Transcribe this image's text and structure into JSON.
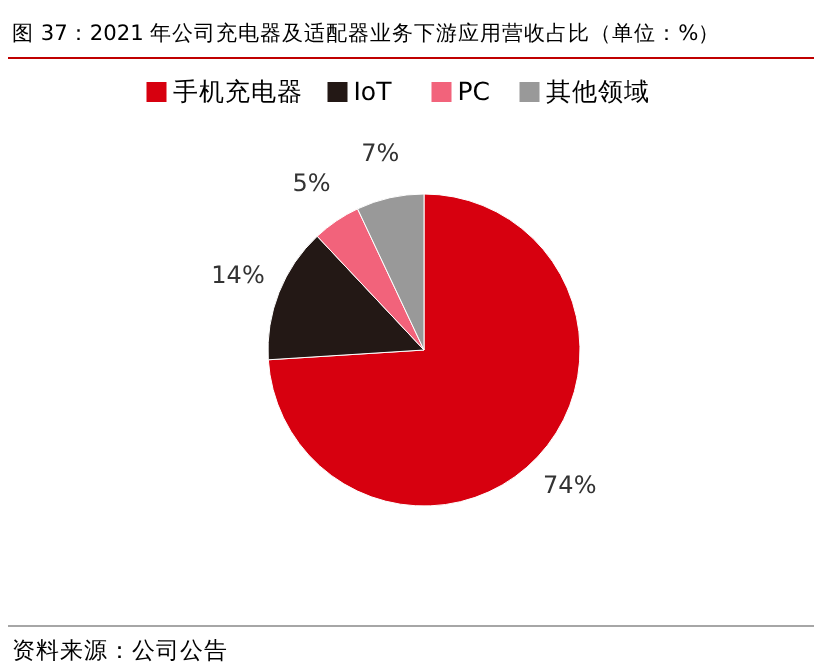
{
  "chart_data": {
    "type": "pie",
    "title": "图 37：2021 年公司充电器及适配器业务下游应用营收占比（单位：%）",
    "categories": [
      "手机充电器",
      "IoT",
      "PC",
      "其他领域"
    ],
    "values": [
      74,
      14,
      5,
      7
    ],
    "colors": [
      "#d7000f",
      "#231815",
      "#f2637b",
      "#999999"
    ],
    "value_labels": [
      "74%",
      "14%",
      "5%",
      "7%"
    ],
    "legend": "top",
    "annotations": [
      "资料来源：公司公告"
    ]
  }
}
